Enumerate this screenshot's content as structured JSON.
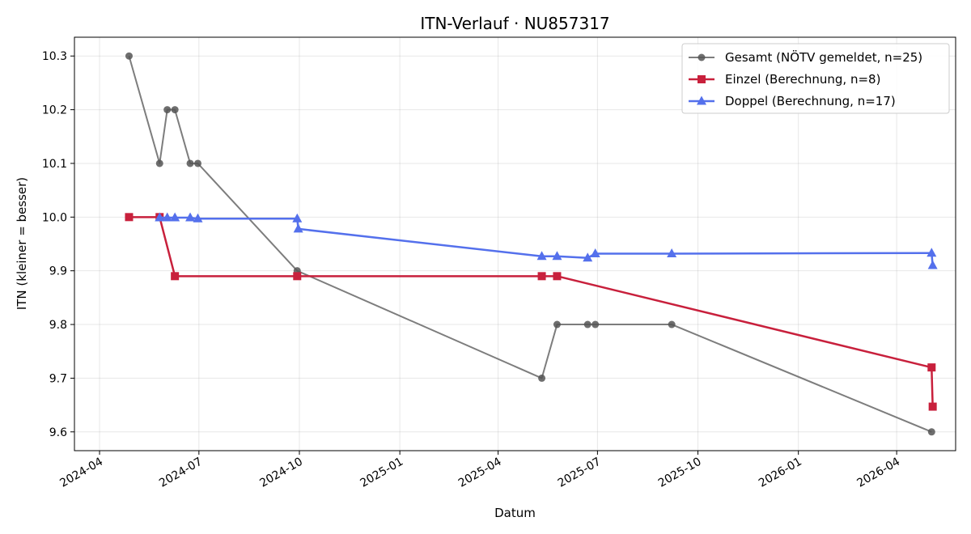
{
  "chart_data": {
    "type": "line",
    "title": "ITN-Verlauf · NU857317",
    "xlabel": "Datum",
    "ylabel": "ITN  (kleiner = besser)",
    "x_axis_type": "date",
    "xlim": [
      "2024-03-09",
      "2026-05-25"
    ],
    "ylim": [
      9.565,
      10.335
    ],
    "x_ticks": [
      "2024-04-01",
      "2024-07-01",
      "2024-10-01",
      "2025-01-01",
      "2025-04-01",
      "2025-07-01",
      "2025-10-01",
      "2026-01-01",
      "2026-04-01"
    ],
    "x_tick_labels": [
      "2024-04",
      "2024-07",
      "2024-10",
      "2025-01",
      "2025-04",
      "2025-07",
      "2025-10",
      "2026-01",
      "2026-04"
    ],
    "y_ticks": [
      9.6,
      9.7,
      9.8,
      9.9,
      10.0,
      10.1,
      10.2,
      10.3
    ],
    "y_tick_labels": [
      "9.6",
      "9.7",
      "9.8",
      "9.9",
      "10.0",
      "10.1",
      "10.2",
      "10.3"
    ],
    "grid": true,
    "legend_position": "top-right",
    "series": [
      {
        "name": "Gesamt (NÖTV gemeldet, n=25)",
        "color": "#666666",
        "marker": "circle",
        "line_width": 2,
        "points": [
          [
            "2024-04-28",
            10.3
          ],
          [
            "2024-05-26",
            10.1
          ],
          [
            "2024-06-02",
            10.2
          ],
          [
            "2024-06-09",
            10.2
          ],
          [
            "2024-06-23",
            10.1
          ],
          [
            "2024-06-30",
            10.1
          ],
          [
            "2024-09-29",
            9.9
          ],
          [
            "2025-05-11",
            9.7
          ],
          [
            "2025-05-25",
            9.8
          ],
          [
            "2025-06-22",
            9.8
          ],
          [
            "2025-06-29",
            9.8
          ],
          [
            "2025-09-07",
            9.8
          ],
          [
            "2026-05-03",
            9.6
          ]
        ]
      },
      {
        "name": "Einzel (Berechnung, n=8)",
        "color": "#c8203c",
        "marker": "square",
        "line_width": 2.5,
        "points": [
          [
            "2024-04-28",
            10.0
          ],
          [
            "2024-05-26",
            10.0
          ],
          [
            "2024-06-09",
            9.89
          ],
          [
            "2024-09-29",
            9.89
          ],
          [
            "2025-05-11",
            9.89
          ],
          [
            "2025-05-25",
            9.89
          ],
          [
            "2026-05-03",
            9.72
          ],
          [
            "2026-05-04",
            9.647
          ]
        ]
      },
      {
        "name": "Doppel (Berechnung, n=17)",
        "color": "#5470ec",
        "marker": "triangle",
        "line_width": 2.5,
        "points": [
          [
            "2024-05-26",
            9.999
          ],
          [
            "2024-06-02",
            9.999
          ],
          [
            "2024-06-09",
            9.999
          ],
          [
            "2024-06-23",
            9.999
          ],
          [
            "2024-06-30",
            9.997
          ],
          [
            "2024-09-29",
            9.997
          ],
          [
            "2024-09-30",
            9.978
          ],
          [
            "2025-05-11",
            9.927
          ],
          [
            "2025-05-25",
            9.927
          ],
          [
            "2025-06-22",
            9.924
          ],
          [
            "2025-06-29",
            9.932
          ],
          [
            "2025-09-07",
            9.932
          ],
          [
            "2026-05-03",
            9.933
          ],
          [
            "2026-05-04",
            9.91
          ]
        ]
      }
    ]
  }
}
